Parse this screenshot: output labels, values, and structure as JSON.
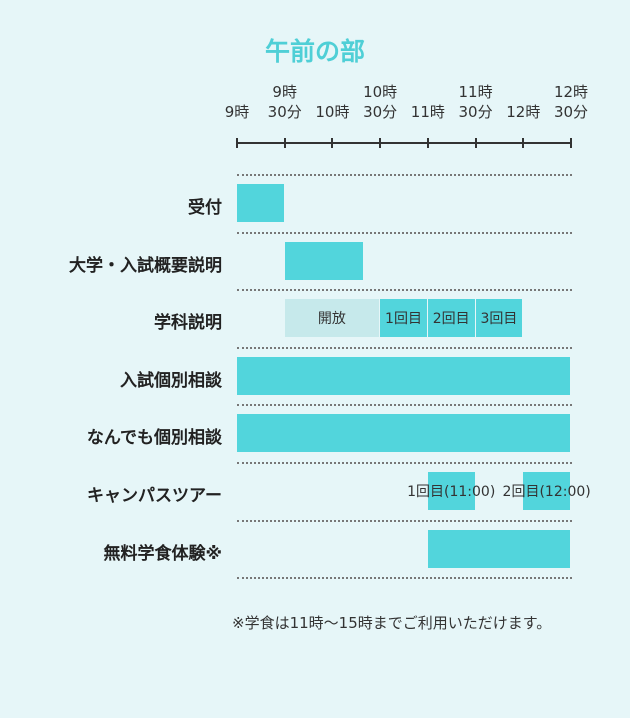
{
  "title": "午前の部",
  "axis": {
    "xlim": [
      9,
      12.5
    ],
    "xticks": [
      {
        "value": 9,
        "label": "9時"
      },
      {
        "value": 9.5,
        "label": "9時\n30分"
      },
      {
        "value": 10,
        "label": "10時"
      },
      {
        "value": 10.5,
        "label": "10時\n30分"
      },
      {
        "value": 11,
        "label": "11時"
      },
      {
        "value": 11.5,
        "label": "11時\n30分"
      },
      {
        "value": 12,
        "label": "12時"
      },
      {
        "value": 12.5,
        "label": "12時\n30分"
      }
    ]
  },
  "rows": [
    {
      "label": "受付",
      "blocks": [
        {
          "start": 9,
          "end": 9.5,
          "color": "#52d5dc"
        }
      ]
    },
    {
      "label": "大学・入試概要説明",
      "blocks": [
        {
          "start": 9.5,
          "end": 10.33,
          "color": "#52d5dc"
        }
      ]
    },
    {
      "label": "学科説明",
      "blocks": [
        {
          "start": 9.5,
          "end": 10.5,
          "color": "#c6e9eb",
          "label": "開放"
        },
        {
          "start": 10.5,
          "end": 11,
          "color": "#52d5dc",
          "label": "1回目"
        },
        {
          "start": 11,
          "end": 11.5,
          "color": "#52d5dc",
          "label": "2回目"
        },
        {
          "start": 11.5,
          "end": 12,
          "color": "#52d5dc",
          "label": "3回目"
        }
      ]
    },
    {
      "label": "入試個別相談",
      "blocks": [
        {
          "start": 9,
          "end": 12.5,
          "color": "#52d5dc"
        }
      ]
    },
    {
      "label": "なんでも個別相談",
      "blocks": [
        {
          "start": 9,
          "end": 12.5,
          "color": "#52d5dc"
        }
      ]
    },
    {
      "label": "キャンパスツアー",
      "blocks": [
        {
          "start": 11,
          "end": 11.5,
          "color": "#52d5dc",
          "label": "1回目(11:00)"
        },
        {
          "start": 12,
          "end": 12.5,
          "color": "#52d5dc",
          "label": "2回目(12:00)"
        }
      ]
    },
    {
      "label": "無料学食体験※",
      "blocks": [
        {
          "start": 11,
          "end": 12.5,
          "color": "#52d5dc"
        }
      ]
    }
  ],
  "note": "※学食は11時〜15時までご利用いただけます。"
}
